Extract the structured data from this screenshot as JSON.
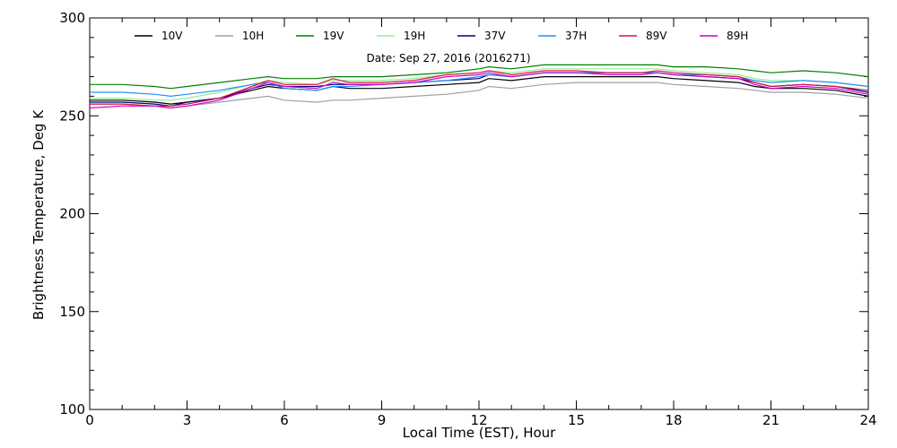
{
  "chart_data": {
    "type": "line",
    "title": "",
    "annotation": "Date: Sep 27, 2016 (2016271)",
    "xlabel": "Local Time (EST), Hour",
    "ylabel": "Brightness Temperature, Deg K",
    "xlim": [
      0,
      24
    ],
    "ylim": [
      100,
      300
    ],
    "xticks": [
      0,
      3,
      6,
      9,
      12,
      15,
      18,
      21,
      24
    ],
    "yticks": [
      100,
      150,
      200,
      250,
      300
    ],
    "grid": false,
    "legend_position": "top",
    "x": [
      0,
      1,
      2,
      2.5,
      3,
      4,
      5,
      5.5,
      6,
      7,
      7.5,
      8,
      9,
      10,
      11,
      12,
      12.3,
      13,
      14,
      15,
      16,
      17,
      17.5,
      18,
      19,
      20,
      20.5,
      21,
      22,
      23,
      24
    ],
    "series": [
      {
        "name": "10V",
        "color": "#000000",
        "values": [
          258,
          258,
          257,
          256,
          257,
          259,
          263,
          265,
          264,
          263,
          265,
          264,
          264,
          265,
          266,
          267,
          269,
          268,
          270,
          270,
          270,
          270,
          270,
          269,
          268,
          267,
          265,
          264,
          264,
          263,
          260
        ]
      },
      {
        "name": "10H",
        "color": "#a0a0a0",
        "values": [
          256,
          256,
          255,
          254,
          255,
          257,
          259,
          260,
          258,
          257,
          258,
          258,
          259,
          260,
          261,
          263,
          265,
          264,
          266,
          267,
          267,
          267,
          267,
          266,
          265,
          264,
          263,
          262,
          262,
          261,
          259
        ]
      },
      {
        "name": "19V",
        "color": "#008000",
        "values": [
          266,
          266,
          265,
          264,
          265,
          267,
          269,
          270,
          269,
          269,
          270,
          270,
          270,
          271,
          272,
          274,
          275,
          274,
          276,
          276,
          276,
          276,
          276,
          275,
          275,
          274,
          273,
          272,
          273,
          272,
          270
        ]
      },
      {
        "name": "19H",
        "color": "#90ee90",
        "values": [
          259,
          259,
          258,
          258,
          259,
          262,
          266,
          268,
          267,
          266,
          268,
          268,
          268,
          269,
          271,
          272,
          273,
          272,
          274,
          274,
          274,
          274,
          274,
          273,
          272,
          271,
          269,
          268,
          268,
          267,
          265
        ]
      },
      {
        "name": "37V",
        "color": "#000080",
        "values": [
          257,
          257,
          256,
          255,
          257,
          259,
          264,
          266,
          265,
          265,
          266,
          266,
          266,
          267,
          268,
          269,
          271,
          270,
          272,
          272,
          272,
          272,
          272,
          271,
          270,
          269,
          267,
          265,
          266,
          265,
          262
        ]
      },
      {
        "name": "37H",
        "color": "#1e90ff",
        "values": [
          262,
          262,
          261,
          260,
          261,
          263,
          266,
          267,
          264,
          263,
          265,
          265,
          266,
          267,
          268,
          270,
          271,
          270,
          272,
          272,
          272,
          272,
          272,
          271,
          271,
          270,
          268,
          267,
          268,
          267,
          265
        ]
      },
      {
        "name": "89V",
        "color": "#dc143c",
        "values": [
          256,
          256,
          255,
          255,
          256,
          259,
          265,
          268,
          266,
          266,
          269,
          267,
          267,
          268,
          271,
          272,
          273,
          271,
          273,
          273,
          272,
          272,
          273,
          272,
          271,
          270,
          267,
          265,
          266,
          265,
          263
        ]
      },
      {
        "name": "89H",
        "color": "#cc00cc",
        "values": [
          254,
          255,
          255,
          254,
          255,
          258,
          264,
          267,
          265,
          264,
          267,
          266,
          266,
          267,
          270,
          271,
          272,
          270,
          272,
          272,
          271,
          271,
          272,
          271,
          270,
          269,
          266,
          264,
          265,
          264,
          261
        ]
      }
    ]
  }
}
